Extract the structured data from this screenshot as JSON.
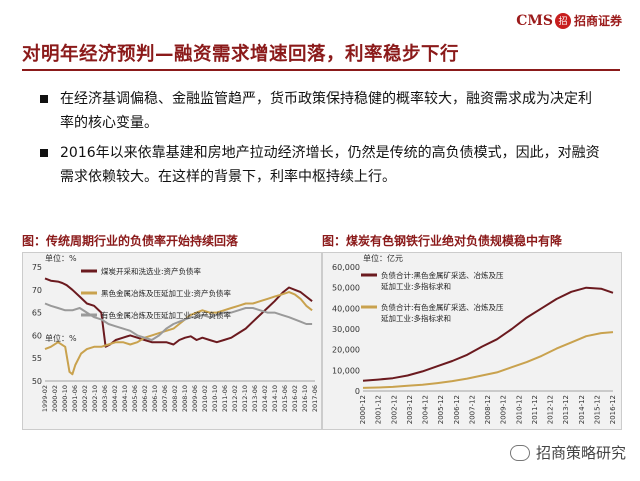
{
  "header": {
    "title": "对明年经济预判—融资需求增速回落，利率稳步下行",
    "logo_text": "CMS",
    "logo_badge": "招",
    "logo_cn": "招商证券"
  },
  "bullets": [
    "在经济基调偏稳、金融监管趋严，货币政策保持稳健的概率较大，融资需求成为决定利率的核心变量。",
    "2016年以来依靠基建和房地产拉动经济增长，仍然是传统的高负债模式，因此，对融资需求依赖较大。在这样的背景下，利率中枢持续上行。"
  ],
  "watermark": "招商策略研究",
  "chart_data": [
    {
      "type": "line",
      "title": "图：传统周期行业的负债率开始持续回落",
      "unit_top": "单位：%",
      "unit_mid": "单位：%",
      "ylim": [
        50,
        75
      ],
      "yticks": [
        50,
        55,
        60,
        65,
        70,
        75
      ],
      "xlim": [
        1999.1,
        2017.8
      ],
      "xticks": [
        "1999-02",
        "2000-02",
        "2000-10",
        "2001-06",
        "2002-02",
        "2002-10",
        "2003-06",
        "2004-02",
        "2004-10",
        "2005-06",
        "2006-02",
        "2006-10",
        "2007-06",
        "2008-02",
        "2008-10",
        "2009-06",
        "2010-02",
        "2010-10",
        "2011-06",
        "2012-02",
        "2012-10",
        "2013-06",
        "2014-02",
        "2014-10",
        "2015-06",
        "2016-02",
        "2016-10",
        "2017-06"
      ],
      "series": [
        {
          "name": "煤炭开采和洗选业:资产负债率",
          "color": "#6B1A1F",
          "x": [
            1999.1,
            1999.5,
            2000.0,
            2000.3,
            2000.6,
            2001.0,
            2001.5,
            2002.0,
            2002.5,
            2003.0,
            2003.3,
            2003.6,
            2004.0,
            2004.5,
            2005.0,
            2005.5,
            2006.0,
            2006.5,
            2007.0,
            2007.5,
            2008.0,
            2008.4,
            2008.8,
            2009.2,
            2009.6,
            2010.0,
            2010.5,
            2011.0,
            2011.5,
            2012.0,
            2012.5,
            2013.0,
            2013.5,
            2014.0,
            2014.5,
            2015.0,
            2015.3,
            2015.6,
            2016.0,
            2016.4,
            2016.8,
            2017.2,
            2017.6
          ],
          "y": [
            72.5,
            72.0,
            71.8,
            71.5,
            71.0,
            70.0,
            68.5,
            67.0,
            66.5,
            65.0,
            57.5,
            58.0,
            59.0,
            59.5,
            60.0,
            59.5,
            59.0,
            58.5,
            58.5,
            58.5,
            58.0,
            59.0,
            59.5,
            59.8,
            59.0,
            59.5,
            59.0,
            58.5,
            59.0,
            59.5,
            60.5,
            61.5,
            63.0,
            64.5,
            66.0,
            67.5,
            68.5,
            69.5,
            70.5,
            70.0,
            69.5,
            68.5,
            67.5
          ]
        },
        {
          "name": "黑色金属冶炼及压延加工业:资产负债率",
          "color": "#C9A24E",
          "x": [
            1999.1,
            1999.5,
            2000.0,
            2000.5,
            2000.8,
            2001.0,
            2001.2,
            2001.6,
            2002.0,
            2002.5,
            2003.0,
            2003.5,
            2004.0,
            2004.5,
            2005.0,
            2005.5,
            2006.0,
            2006.5,
            2007.0,
            2007.5,
            2008.0,
            2008.4,
            2008.8,
            2009.2,
            2009.6,
            2010.0,
            2010.5,
            2011.0,
            2011.5,
            2012.0,
            2012.5,
            2013.0,
            2013.5,
            2014.0,
            2014.5,
            2015.0,
            2015.5,
            2016.0,
            2016.4,
            2016.8,
            2017.2,
            2017.6
          ],
          "y": [
            57.0,
            57.5,
            58.5,
            57.5,
            52.0,
            51.5,
            53.5,
            56.0,
            57.0,
            57.5,
            57.5,
            58.0,
            58.5,
            58.5,
            58.0,
            58.5,
            59.5,
            60.0,
            60.5,
            61.0,
            61.5,
            62.5,
            63.5,
            64.5,
            65.0,
            65.5,
            65.0,
            65.0,
            65.5,
            66.0,
            66.5,
            67.0,
            67.0,
            67.5,
            68.0,
            68.5,
            69.0,
            69.5,
            69.0,
            68.0,
            66.5,
            65.5
          ]
        },
        {
          "name": "有色金属冶炼及压延加工业:资产负债率",
          "color": "#9A9A9A",
          "x": [
            1999.1,
            1999.5,
            2000.0,
            2000.5,
            2001.0,
            2001.5,
            2002.0,
            2002.5,
            2003.0,
            2003.5,
            2004.0,
            2004.5,
            2005.0,
            2005.5,
            2006.0,
            2006.5,
            2007.0,
            2007.5,
            2008.0,
            2008.4,
            2008.8,
            2009.2,
            2009.6,
            2010.0,
            2010.5,
            2011.0,
            2011.5,
            2012.0,
            2012.5,
            2013.0,
            2013.5,
            2014.0,
            2014.5,
            2015.0,
            2015.5,
            2016.0,
            2016.4,
            2016.8,
            2017.2,
            2017.6
          ],
          "y": [
            67.0,
            66.5,
            66.0,
            65.5,
            65.5,
            66.0,
            65.0,
            64.0,
            63.5,
            62.5,
            62.0,
            61.5,
            61.0,
            60.0,
            59.5,
            59.0,
            60.0,
            61.5,
            62.5,
            63.0,
            63.5,
            64.0,
            64.0,
            64.5,
            64.0,
            64.5,
            65.0,
            65.0,
            65.5,
            66.0,
            66.0,
            65.5,
            65.0,
            65.0,
            64.5,
            64.0,
            63.5,
            63.0,
            62.5,
            62.5
          ]
        }
      ]
    },
    {
      "type": "line",
      "title": "图：煤炭有色钢铁行业绝对负债规模稳中有降",
      "unit": "单位：亿元",
      "ylim": [
        0,
        60000
      ],
      "yticks": [
        0,
        10000,
        20000,
        30000,
        40000,
        50000,
        60000
      ],
      "ytick_labels": [
        "0",
        "10,000",
        "20,000",
        "30,000",
        "40,000",
        "50,000",
        "60,000"
      ],
      "xlim": [
        2000.0,
        2016.8
      ],
      "xticks": [
        "2000-12",
        "2001-12",
        "2002-12",
        "2003-12",
        "2004-12",
        "2005-12",
        "2006-12",
        "2007-12",
        "2008-12",
        "2009-12",
        "2010-12",
        "2011-12",
        "2012-12",
        "2013-12",
        "2014-12",
        "2015-12",
        "2016-12"
      ],
      "series": [
        {
          "name": "负债合计:黑色金属矿采选、冶炼及压延加工业:多指标求和",
          "color": "#6B1A1F",
          "x": [
            2000,
            2001,
            2002,
            2003,
            2004,
            2005,
            2006,
            2007,
            2008,
            2009,
            2010,
            2011,
            2012,
            2013,
            2014,
            2015,
            2016,
            2016.8
          ],
          "y": [
            5000,
            5500,
            6200,
            7500,
            9500,
            12000,
            14500,
            17500,
            21500,
            25000,
            30000,
            35500,
            40000,
            44500,
            48000,
            50000,
            49500,
            47500
          ]
        },
        {
          "name": "负债合计:有色金属矿采选、冶炼及压延加工业:多指标求和",
          "color": "#C9A24E",
          "x": [
            2000,
            2001,
            2002,
            2003,
            2004,
            2005,
            2006,
            2007,
            2008,
            2009,
            2010,
            2011,
            2012,
            2013,
            2014,
            2015,
            2016,
            2016.8
          ],
          "y": [
            1500,
            1700,
            2000,
            2500,
            3000,
            3800,
            4800,
            6000,
            7500,
            9000,
            11500,
            14000,
            17000,
            20500,
            23500,
            26500,
            28000,
            28500
          ]
        }
      ]
    }
  ]
}
